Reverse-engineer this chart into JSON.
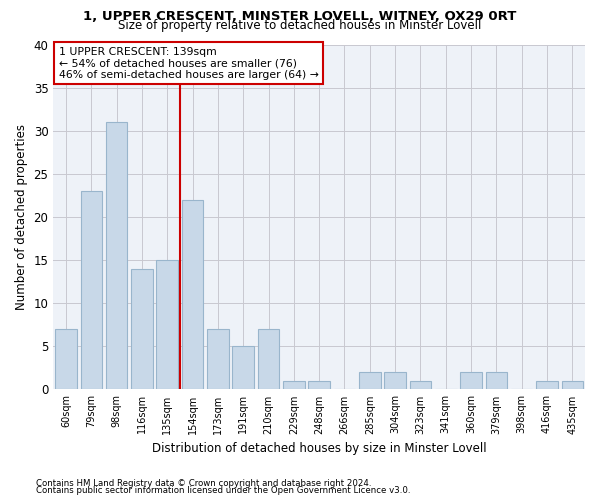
{
  "title1": "1, UPPER CRESCENT, MINSTER LOVELL, WITNEY, OX29 0RT",
  "title2": "Size of property relative to detached houses in Minster Lovell",
  "xlabel": "Distribution of detached houses by size in Minster Lovell",
  "ylabel": "Number of detached properties",
  "footnote1": "Contains HM Land Registry data © Crown copyright and database right 2024.",
  "footnote2": "Contains public sector information licensed under the Open Government Licence v3.0.",
  "categories": [
    "60sqm",
    "79sqm",
    "98sqm",
    "116sqm",
    "135sqm",
    "154sqm",
    "173sqm",
    "191sqm",
    "210sqm",
    "229sqm",
    "248sqm",
    "266sqm",
    "285sqm",
    "304sqm",
    "323sqm",
    "341sqm",
    "360sqm",
    "379sqm",
    "398sqm",
    "416sqm",
    "435sqm"
  ],
  "values": [
    7,
    23,
    31,
    14,
    15,
    22,
    7,
    5,
    7,
    1,
    1,
    0,
    2,
    2,
    1,
    0,
    2,
    2,
    0,
    1,
    1
  ],
  "bar_color": "#c8d8e8",
  "bar_edge_color": "#99b5cc",
  "grid_color": "#c8c8d0",
  "bg_color": "#eef2f8",
  "vline_color": "#cc0000",
  "annotation_line1": "1 UPPER CRESCENT: 139sqm",
  "annotation_line2": "← 54% of detached houses are smaller (76)",
  "annotation_line3": "46% of semi-detached houses are larger (64) →",
  "ylim": [
    0,
    40
  ],
  "yticks": [
    0,
    5,
    10,
    15,
    20,
    25,
    30,
    35,
    40
  ],
  "vline_index": 4
}
